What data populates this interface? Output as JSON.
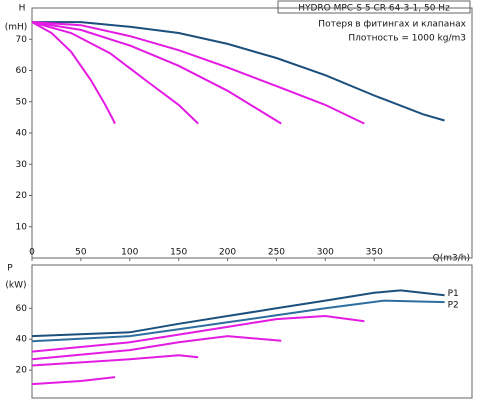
{
  "chart_data": [
    {
      "type": "line",
      "title": "HYDRO MPC-S 5 CR 64-3-1, 50 Hz",
      "annotations": [
        "Потеря в фитингах и клапанах",
        "Плотность = 1000 kg/m3"
      ],
      "ylabel": "H",
      "yunit": "(mН)",
      "xlabel": "Q(m3/h)",
      "xlim": [
        0,
        450
      ],
      "xticks": [
        0,
        50,
        100,
        150,
        200,
        250,
        300,
        350
      ],
      "ylim": [
        0,
        80
      ],
      "yticks": [
        10,
        20,
        30,
        40,
        50,
        60,
        70
      ],
      "series": [
        {
          "color": "#1b4f7c",
          "x": [
            0,
            50,
            100,
            150,
            200,
            250,
            300,
            350,
            400,
            422
          ],
          "values": [
            75.5,
            75.5,
            74,
            72,
            68.5,
            64,
            58.5,
            52,
            46,
            44
          ]
        },
        {
          "color": "#e31be3",
          "x": [
            0,
            50,
            100,
            150,
            200,
            250,
            300,
            340
          ],
          "values": [
            75.5,
            74.5,
            71,
            66.5,
            61,
            55,
            49,
            43
          ]
        },
        {
          "color": "#e31be3",
          "x": [
            0,
            50,
            100,
            150,
            200,
            255
          ],
          "values": [
            75.5,
            73,
            68,
            61.5,
            53.5,
            43
          ]
        },
        {
          "color": "#e31be3",
          "x": [
            0,
            40,
            80,
            120,
            150,
            170
          ],
          "values": [
            75.5,
            72,
            65.5,
            56,
            49,
            43
          ]
        },
        {
          "color": "#e31be3",
          "x": [
            0,
            20,
            40,
            60,
            75,
            85
          ],
          "values": [
            75.5,
            72,
            66,
            57,
            49,
            43
          ]
        }
      ]
    },
    {
      "type": "line",
      "ylabel": "P",
      "yunit": "(kW)",
      "xlim": [
        0,
        450
      ],
      "ylim": [
        2,
        88
      ],
      "yticks": [
        20,
        40,
        60
      ],
      "series": [
        {
          "name": "P1",
          "color": "#1b4f7c",
          "x": [
            0,
            100,
            150,
            200,
            250,
            300,
            350,
            377,
            422
          ],
          "values": [
            42,
            44.5,
            50,
            55,
            60,
            65,
            70,
            71.6,
            68.4
          ]
        },
        {
          "name": "P2",
          "color": "#2e6e9e",
          "x": [
            0,
            100,
            150,
            200,
            250,
            300,
            360,
            422
          ],
          "values": [
            38.7,
            42,
            46.5,
            51,
            55.5,
            60,
            65,
            64
          ]
        },
        {
          "color": "#e31be3",
          "x": [
            0,
            100,
            150,
            200,
            250,
            300,
            340
          ],
          "values": [
            32,
            38,
            43,
            48,
            53,
            55,
            51.6
          ]
        },
        {
          "color": "#e31be3",
          "x": [
            0,
            100,
            150,
            200,
            255
          ],
          "values": [
            27,
            33,
            38,
            42,
            39
          ]
        },
        {
          "color": "#e31be3",
          "x": [
            0,
            50,
            100,
            150,
            170
          ],
          "values": [
            23,
            25,
            27,
            29.7,
            28.4
          ]
        },
        {
          "color": "#e31be3",
          "x": [
            0,
            50,
            85
          ],
          "values": [
            11,
            13,
            15.5
          ]
        }
      ]
    }
  ]
}
